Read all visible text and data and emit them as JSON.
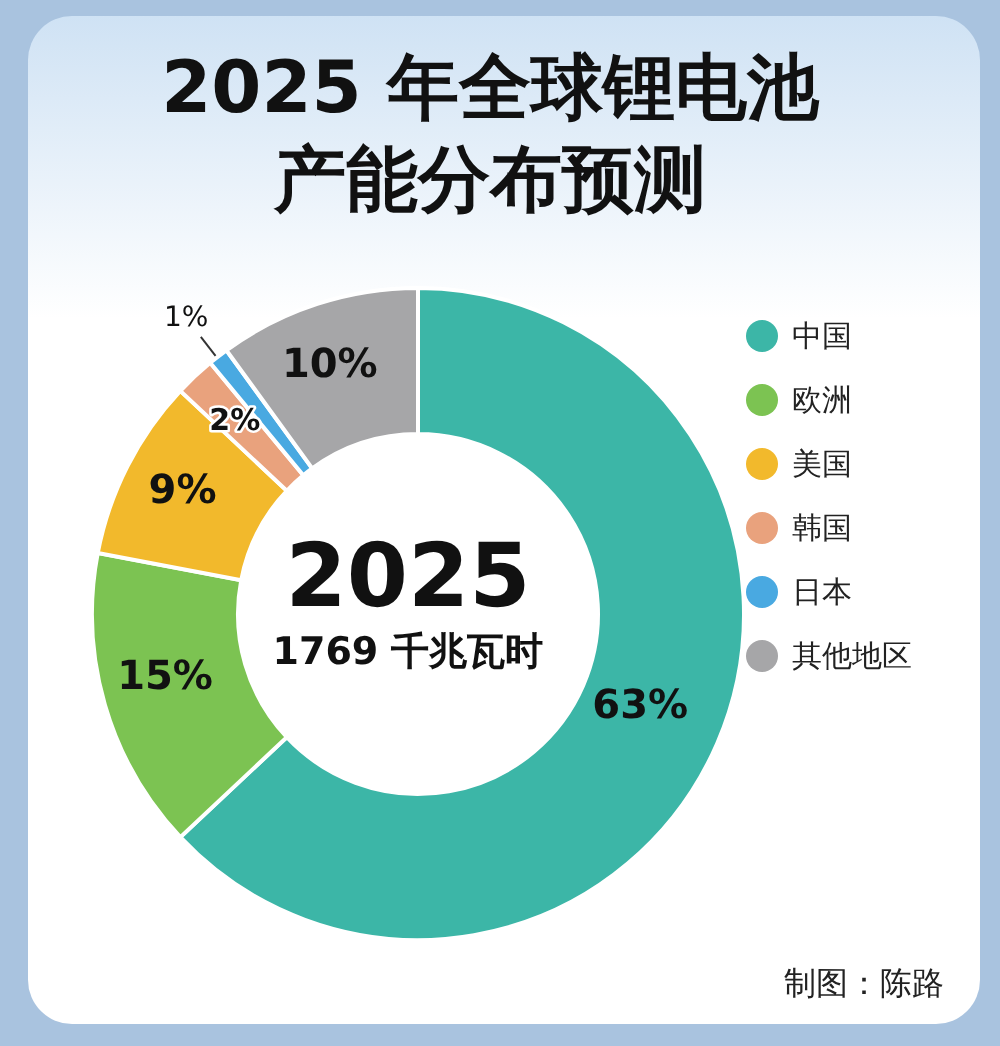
{
  "chart_data": {
    "type": "donut",
    "title": "2025 年全球锂电池产能分布预测",
    "categories": [
      "中国",
      "欧洲",
      "美国",
      "韩国",
      "日本",
      "其他地区"
    ],
    "values": [
      63,
      15,
      9,
      2,
      1,
      10
    ],
    "value_labels": [
      "63%",
      "15%",
      "9%",
      "2%",
      "1%",
      "10%"
    ],
    "colors": [
      "#3cb6a7",
      "#7cc352",
      "#f2b92c",
      "#e9a27d",
      "#49a9e1",
      "#a6a6a8"
    ],
    "legend": "right",
    "annotations": [
      "2025",
      "1769 千兆瓦时",
      "制图：陈路"
    ]
  }
}
